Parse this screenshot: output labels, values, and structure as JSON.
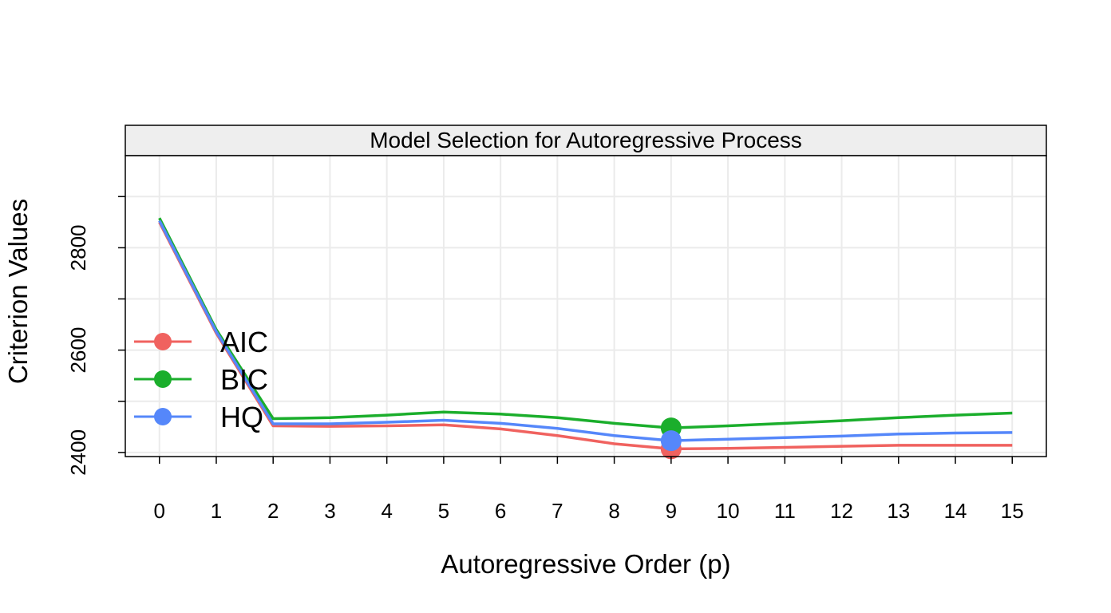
{
  "chart_data": {
    "type": "line",
    "title": "Model Selection for Autoregressive Process",
    "xlabel": "Autoregressive Order (p)",
    "ylabel": "Criterion Values",
    "x": [
      0,
      1,
      2,
      3,
      4,
      5,
      6,
      7,
      8,
      9,
      10,
      11,
      12,
      13,
      14,
      15
    ],
    "x_tick_labels": [
      "0",
      "1",
      "2",
      "3",
      "4",
      "5",
      "6",
      "7",
      "8",
      "9",
      "10",
      "11",
      "12",
      "13",
      "14",
      "15"
    ],
    "y_ticks": [
      2400,
      2600,
      2800
    ],
    "y_tick_labels": [
      "2400",
      "2600",
      "2800"
    ],
    "xlim": [
      -0.6,
      15.6
    ],
    "ylim": [
      2392,
      2980
    ],
    "grid": true,
    "legend_position": "left",
    "series": [
      {
        "name": "AIC",
        "color": "#F0625F",
        "values": [
          2850,
          2633,
          2452,
          2451,
          2452,
          2454,
          2446,
          2433,
          2417,
          2407,
          2408,
          2410,
          2412,
          2414,
          2414,
          2414
        ],
        "highlight_index": 9
      },
      {
        "name": "BIC",
        "color": "#1BAE2C",
        "values": [
          2858,
          2640,
          2466,
          2468,
          2473,
          2479,
          2475,
          2468,
          2457,
          2448,
          2452,
          2457,
          2462,
          2468,
          2473,
          2477
        ],
        "highlight_index": 9
      },
      {
        "name": "HQ",
        "color": "#5587FA",
        "values": [
          2853,
          2636,
          2456,
          2456,
          2459,
          2463,
          2457,
          2447,
          2433,
          2423,
          2426,
          2429,
          2432,
          2436,
          2438,
          2439
        ],
        "highlight_index": 9
      }
    ]
  }
}
